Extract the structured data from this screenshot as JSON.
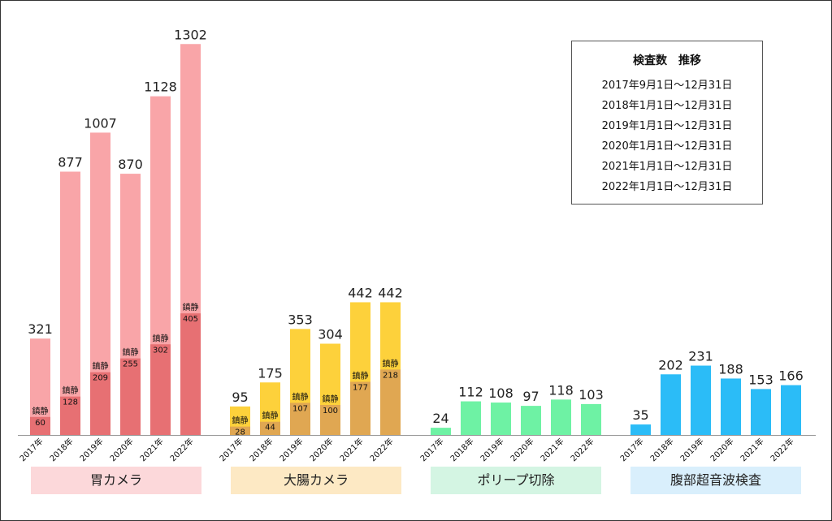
{
  "chart_data": {
    "type": "bar",
    "years": [
      "2017年",
      "2018年",
      "2019年",
      "2020年",
      "2021年",
      "2022年"
    ],
    "sedation_label": "鎮静",
    "groups": [
      {
        "name": "胃カメラ",
        "totals": [
          321,
          877,
          1007,
          870,
          1128,
          1302
        ],
        "sedation": [
          60,
          128,
          209,
          255,
          302,
          405
        ],
        "colors": {
          "main": "#f9a5a8",
          "sedation": "#e77073",
          "label_bg": "#fcd8da"
        }
      },
      {
        "name": "大腸カメラ",
        "totals": [
          95,
          175,
          353,
          304,
          442,
          442
        ],
        "sedation": [
          28,
          44,
          107,
          100,
          177,
          218
        ],
        "colors": {
          "main": "#fdd13b",
          "sedation": "#e0a752",
          "label_bg": "#fde9c4"
        }
      },
      {
        "name": "ポリープ切除",
        "totals": [
          24,
          112,
          108,
          97,
          118,
          103
        ],
        "sedation": null,
        "colors": {
          "main": "#6ef2a4",
          "sedation": null,
          "label_bg": "#d4f5e3"
        }
      },
      {
        "name": "腹部超音波検査",
        "totals": [
          35,
          202,
          231,
          188,
          153,
          166
        ],
        "sedation": null,
        "colors": {
          "main": "#2bbcf7",
          "sedation": null,
          "label_bg": "#d9effc"
        }
      }
    ]
  },
  "legend": {
    "title": "検査数　推移",
    "lines": [
      "2017年9月1日〜12月31日",
      "2018年1月1日〜12月31日",
      "2019年1月1日〜12月31日",
      "2020年1月1日〜12月31日",
      "2021年1月1日〜12月31日",
      "2022年1月1日〜12月31日"
    ]
  }
}
